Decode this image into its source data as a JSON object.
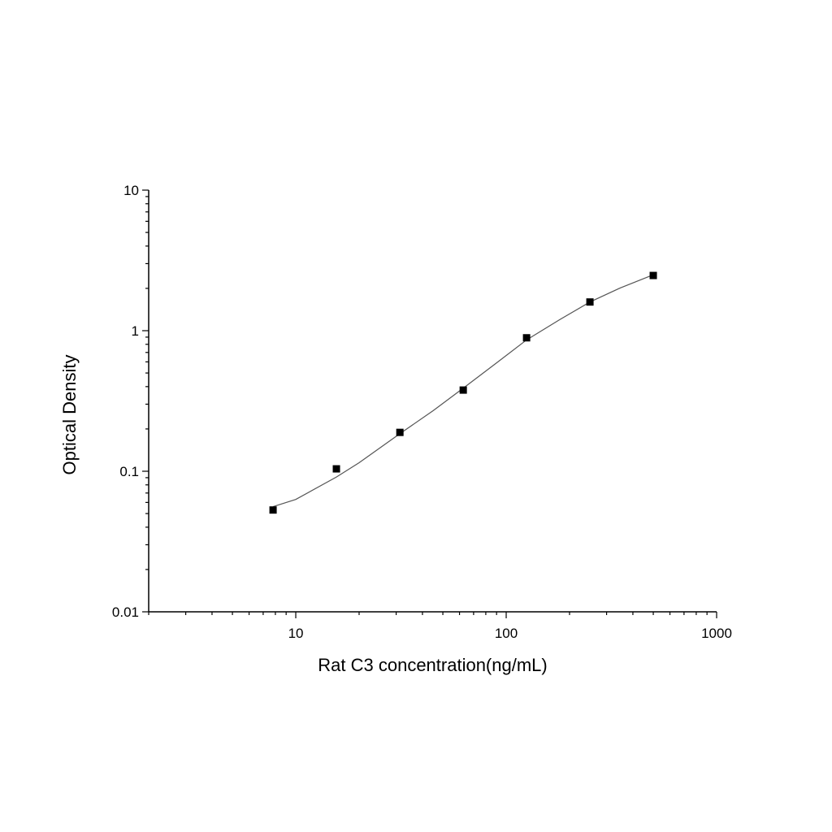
{
  "chart_data": {
    "type": "scatter",
    "xlabel": "Rat C3 concentration(ng/mL)",
    "ylabel": "Optical Density",
    "x_scale": "log",
    "y_scale": "log",
    "xlim": [
      2,
      1000
    ],
    "ylim": [
      0.01,
      10
    ],
    "x_ticks": [
      {
        "value": 10,
        "label": "10"
      },
      {
        "value": 100,
        "label": "100"
      },
      {
        "value": 1000,
        "label": "1000"
      }
    ],
    "y_ticks": [
      {
        "value": 0.01,
        "label": "0.01"
      },
      {
        "value": 0.1,
        "label": "0.1"
      },
      {
        "value": 1,
        "label": "1"
      },
      {
        "value": 10,
        "label": "10"
      }
    ],
    "grid": false,
    "legend": "none",
    "series": [
      {
        "marker": "square",
        "color": "#000000",
        "points": [
          {
            "x": 7.8,
            "y": 0.053
          },
          {
            "x": 15.6,
            "y": 0.104
          },
          {
            "x": 31.25,
            "y": 0.189
          },
          {
            "x": 62.5,
            "y": 0.378
          },
          {
            "x": 125,
            "y": 0.89
          },
          {
            "x": 250,
            "y": 1.6
          },
          {
            "x": 500,
            "y": 2.47
          }
        ]
      }
    ],
    "fit_curve": {
      "color": "#555555",
      "points": [
        {
          "x": 7.8,
          "y": 0.056
        },
        {
          "x": 10,
          "y": 0.063
        },
        {
          "x": 15.6,
          "y": 0.091
        },
        {
          "x": 20,
          "y": 0.115
        },
        {
          "x": 31.25,
          "y": 0.185
        },
        {
          "x": 45,
          "y": 0.27
        },
        {
          "x": 62.5,
          "y": 0.39
        },
        {
          "x": 90,
          "y": 0.59
        },
        {
          "x": 125,
          "y": 0.86
        },
        {
          "x": 180,
          "y": 1.2
        },
        {
          "x": 250,
          "y": 1.6
        },
        {
          "x": 350,
          "y": 2.02
        },
        {
          "x": 500,
          "y": 2.5
        }
      ]
    }
  }
}
